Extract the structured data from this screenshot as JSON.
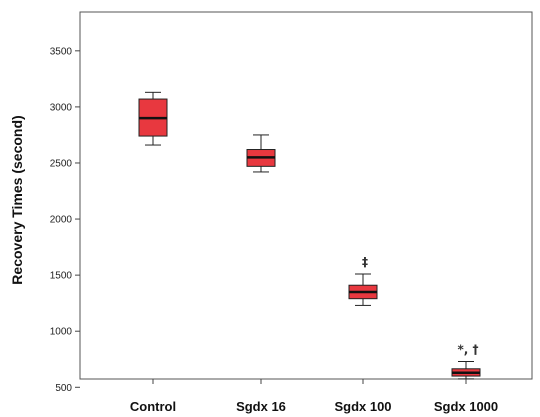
{
  "chart_data": {
    "type": "box",
    "title": "",
    "xlabel": "",
    "ylabel": "Recovery Times (second)",
    "ylim": [
      400,
      3650
    ],
    "yticks": [
      500,
      1000,
      1500,
      2000,
      2500,
      3000,
      3500
    ],
    "categories": [
      "Control",
      "Sgdx 16",
      "Sgdx 100",
      "Sgdx 1000"
    ],
    "boxes": [
      {
        "category": "Control",
        "min": 2660,
        "q1": 2740,
        "median": 2900,
        "q3": 3070,
        "max": 3130,
        "annotation": ""
      },
      {
        "category": "Sgdx 16",
        "min": 2420,
        "q1": 2470,
        "median": 2550,
        "q3": 2620,
        "max": 2750,
        "annotation": ""
      },
      {
        "category": "Sgdx 100",
        "min": 1230,
        "q1": 1290,
        "median": 1350,
        "q3": 1410,
        "max": 1510,
        "annotation": "‡"
      },
      {
        "category": "Sgdx 1000",
        "min": 575,
        "q1": 600,
        "median": 630,
        "q3": 665,
        "max": 730,
        "annotation": "*, †"
      }
    ],
    "grid": false,
    "colors": {
      "box_fill": "#e8383f",
      "box_stroke": "#222222",
      "axis": "#444444"
    }
  }
}
